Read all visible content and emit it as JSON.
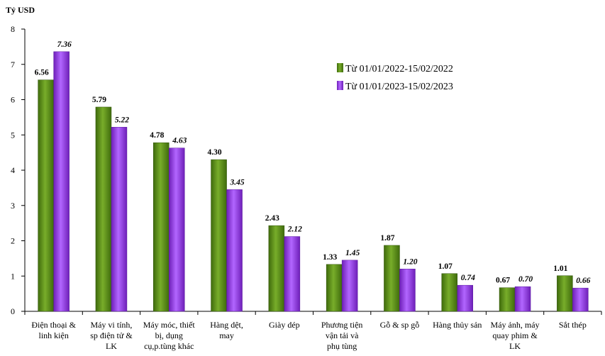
{
  "chart_data": {
    "type": "bar",
    "title": "",
    "ylabel": "Tỷ USD",
    "xlabel": "",
    "ylim": [
      0,
      8
    ],
    "yticks": [
      "0",
      "1",
      "2",
      "3",
      "4",
      "5",
      "6",
      "7",
      "8"
    ],
    "grid": false,
    "legend_position": "top-right",
    "categories": [
      [
        "Điện thoại &",
        "linh kiện"
      ],
      [
        "Máy vi tính,",
        "sp điện tử &",
        "LK"
      ],
      [
        "Máy móc, thiết",
        "bị, dụng",
        "cụ,p.tùng khác"
      ],
      [
        "Hàng dệt,",
        "may"
      ],
      [
        "Giày dép"
      ],
      [
        "Phương tiện",
        "vận tải và",
        "phụ tùng"
      ],
      [
        "Gỗ & sp gỗ"
      ],
      [
        "Hàng thủy sản"
      ],
      [
        "Máy ảnh, máy",
        "quay phim &",
        "LK"
      ],
      [
        "Sắt thép"
      ]
    ],
    "series": [
      {
        "name": "Từ 01/01/2022-15/02/2022",
        "color": "#5a8c1a",
        "values": [
          6.56,
          5.79,
          4.78,
          4.3,
          2.43,
          1.33,
          1.87,
          1.07,
          0.67,
          1.01
        ],
        "labels": [
          "6.56",
          "5.79",
          "4.78",
          "4.30",
          "2.43",
          "1.33",
          "1.87",
          "1.07",
          "0.67",
          "1.01"
        ]
      },
      {
        "name": "Từ 01/01/2023-15/02/2023",
        "color": "#9a3fe0",
        "values": [
          7.36,
          5.22,
          4.63,
          3.45,
          2.12,
          1.45,
          1.2,
          0.74,
          0.7,
          0.66
        ],
        "labels": [
          "7.36",
          "5.22",
          "4.63",
          "3.45",
          "2.12",
          "1.45",
          "1.20",
          "0.74",
          "0.70",
          "0.66"
        ]
      }
    ]
  }
}
